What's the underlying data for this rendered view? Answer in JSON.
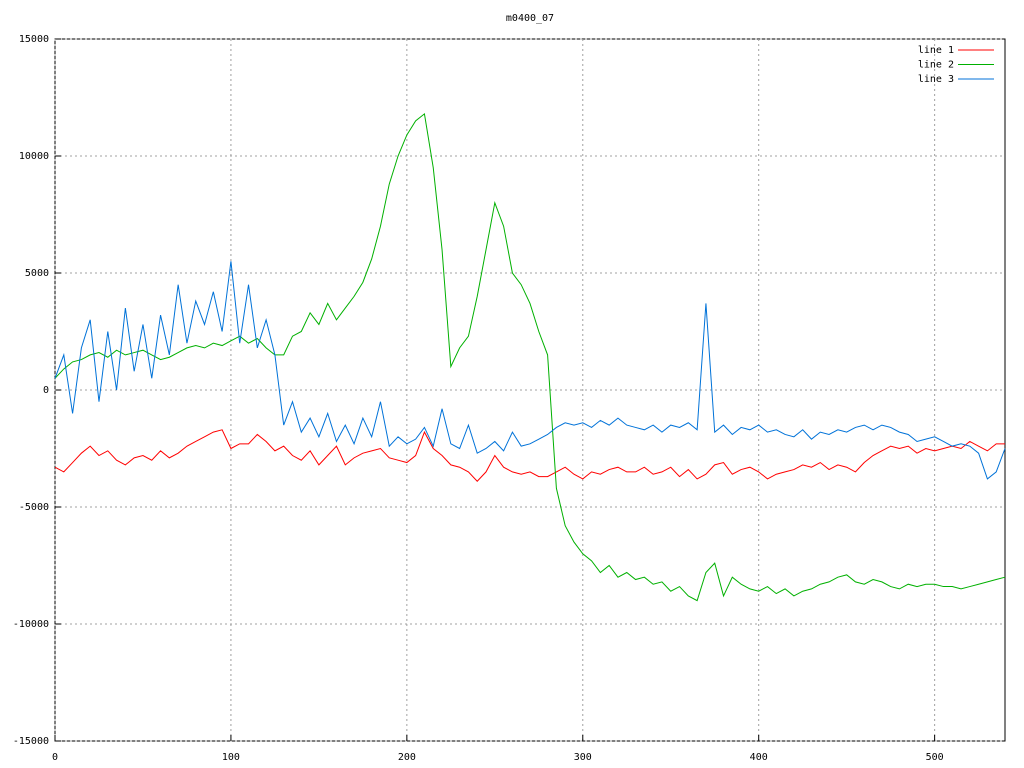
{
  "chart_data": {
    "type": "line",
    "title": "m0400_07",
    "x": [
      0,
      5,
      10,
      15,
      20,
      25,
      30,
      35,
      40,
      45,
      50,
      55,
      60,
      65,
      70,
      75,
      80,
      85,
      90,
      95,
      100,
      105,
      110,
      115,
      120,
      125,
      130,
      135,
      140,
      145,
      150,
      155,
      160,
      165,
      170,
      175,
      180,
      185,
      190,
      195,
      200,
      205,
      210,
      215,
      220,
      225,
      230,
      235,
      240,
      245,
      250,
      255,
      260,
      265,
      270,
      275,
      280,
      285,
      290,
      295,
      300,
      305,
      310,
      315,
      320,
      325,
      330,
      335,
      340,
      345,
      350,
      355,
      360,
      365,
      370,
      375,
      380,
      385,
      390,
      395,
      400,
      405,
      410,
      415,
      420,
      425,
      430,
      435,
      440,
      445,
      450,
      455,
      460,
      465,
      470,
      475,
      480,
      485,
      490,
      495,
      500,
      505,
      510,
      515,
      520,
      525,
      530,
      535,
      540
    ],
    "series": [
      {
        "name": "line 1",
        "color": "#ff0000",
        "values": [
          -3300,
          -3500,
          -3100,
          -2700,
          -2400,
          -2800,
          -2600,
          -3000,
          -3200,
          -2900,
          -2800,
          -3000,
          -2600,
          -2900,
          -2700,
          -2400,
          -2200,
          -2000,
          -1800,
          -1700,
          -2500,
          -2300,
          -2300,
          -1900,
          -2200,
          -2600,
          -2400,
          -2800,
          -3000,
          -2600,
          -3200,
          -2800,
          -2400,
          -3200,
          -2900,
          -2700,
          -2600,
          -2500,
          -2900,
          -3000,
          -3100,
          -2800,
          -1800,
          -2500,
          -2800,
          -3200,
          -3300,
          -3500,
          -3900,
          -3500,
          -2800,
          -3300,
          -3500,
          -3600,
          -3500,
          -3700,
          -3700,
          -3500,
          -3300,
          -3600,
          -3800,
          -3500,
          -3600,
          -3400,
          -3300,
          -3500,
          -3500,
          -3300,
          -3600,
          -3500,
          -3300,
          -3700,
          -3400,
          -3800,
          -3600,
          -3200,
          -3100,
          -3600,
          -3400,
          -3300,
          -3500,
          -3800,
          -3600,
          -3500,
          -3400,
          -3200,
          -3300,
          -3100,
          -3400,
          -3200,
          -3300,
          -3500,
          -3100,
          -2800,
          -2600,
          -2400,
          -2500,
          -2400,
          -2700,
          -2500,
          -2600,
          -2500,
          -2400,
          -2500,
          -2200,
          -2400,
          -2600,
          -2300,
          -2300
        ]
      },
      {
        "name": "line 2",
        "color": "#00b000",
        "values": [
          500,
          900,
          1200,
          1300,
          1500,
          1600,
          1400,
          1700,
          1500,
          1600,
          1700,
          1500,
          1300,
          1400,
          1600,
          1800,
          1900,
          1800,
          2000,
          1900,
          2100,
          2300,
          2000,
          2200,
          1800,
          1500,
          1500,
          2300,
          2500,
          3300,
          2800,
          3700,
          3000,
          3500,
          4000,
          4600,
          5600,
          7000,
          8800,
          10000,
          10900,
          11500,
          11800,
          9500,
          6000,
          1000,
          1800,
          2300,
          4000,
          6000,
          8000,
          7000,
          5000,
          4500,
          3700,
          2500,
          1500,
          -4200,
          -5800,
          -6500,
          -7000,
          -7300,
          -7800,
          -7500,
          -8000,
          -7800,
          -8100,
          -8000,
          -8300,
          -8200,
          -8600,
          -8400,
          -8800,
          -9000,
          -7800,
          -7400,
          -8800,
          -8000,
          -8300,
          -8500,
          -8600,
          -8400,
          -8700,
          -8500,
          -8800,
          -8600,
          -8500,
          -8300,
          -8200,
          -8000,
          -7900,
          -8200,
          -8300,
          -8100,
          -8200,
          -8400,
          -8500,
          -8300,
          -8400,
          -8300,
          -8300,
          -8400,
          -8400,
          -8500,
          -8400,
          -8300,
          -8200,
          -8100,
          -8000
        ]
      },
      {
        "name": "line 3",
        "color": "#0072d8",
        "values": [
          500,
          1500,
          -1000,
          1800,
          3000,
          -500,
          2500,
          0,
          3500,
          800,
          2800,
          500,
          3200,
          1500,
          4500,
          2000,
          3800,
          2800,
          4200,
          2500,
          5500,
          2000,
          4500,
          1800,
          3000,
          1500,
          -1500,
          -500,
          -1800,
          -1200,
          -2000,
          -1000,
          -2200,
          -1500,
          -2300,
          -1200,
          -2000,
          -500,
          -2400,
          -2000,
          -2300,
          -2100,
          -1600,
          -2400,
          -800,
          -2300,
          -2500,
          -1500,
          -2700,
          -2500,
          -2200,
          -2600,
          -1800,
          -2400,
          -2300,
          -2100,
          -1900,
          -1600,
          -1400,
          -1500,
          -1400,
          -1600,
          -1300,
          -1500,
          -1200,
          -1500,
          -1600,
          -1700,
          -1500,
          -1800,
          -1500,
          -1600,
          -1400,
          -1700,
          3700,
          -1800,
          -1500,
          -1900,
          -1600,
          -1700,
          -1500,
          -1800,
          -1700,
          -1900,
          -2000,
          -1700,
          -2100,
          -1800,
          -1900,
          -1700,
          -1800,
          -1600,
          -1500,
          -1700,
          -1500,
          -1600,
          -1800,
          -1900,
          -2200,
          -2100,
          -2000,
          -2200,
          -2400,
          -2300,
          -2400,
          -2700,
          -3800,
          -3500,
          -2500
        ]
      }
    ],
    "xlim": [
      0,
      540
    ],
    "xticks": [
      0,
      100,
      200,
      300,
      400,
      500
    ],
    "ylim": [
      -15000,
      15000
    ],
    "yticks": [
      -15000,
      -10000,
      -5000,
      0,
      5000,
      10000,
      15000
    ],
    "grid": true,
    "legend": "top-right"
  }
}
